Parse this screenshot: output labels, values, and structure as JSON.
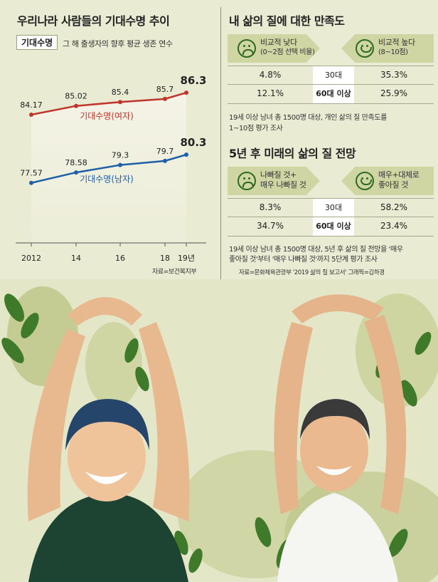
{
  "left_panel": {
    "title": "우리나라 사람들의 기대수명 추이",
    "tag": "기대수명",
    "subtitle": "그 해 출생자의 향후 평균 생존 연수",
    "source": "자료=보건복지부"
  },
  "chart_data": {
    "type": "line",
    "x": [
      "2012",
      "14",
      "16",
      "18",
      "19년"
    ],
    "series": [
      {
        "name": "기대수명(여자)",
        "values": [
          84.17,
          85.02,
          85.4,
          85.7,
          86.3
        ],
        "color": "#c0352b"
      },
      {
        "name": "기대수명(남자)",
        "values": [
          77.57,
          78.58,
          79.3,
          79.7,
          80.3
        ],
        "color": "#1f5fa8"
      }
    ],
    "value_labels": [
      [
        "84.17",
        "85.02",
        "85.4",
        "85.7",
        "86.3"
      ],
      [
        "77.57",
        "78.58",
        "79.3",
        "79.7",
        "80.3"
      ]
    ],
    "xlabel": "",
    "ylabel": "",
    "grid": false
  },
  "satisfaction": {
    "title": "내 삶의 질에 대한 만족도",
    "low_label_1": "비교적 낮다",
    "low_label_2": "(0~2점 선택 비율)",
    "high_label_1": "비교적 높다",
    "high_label_2": "(8~10점)",
    "rows": [
      {
        "group": "30대",
        "low": "4.8%",
        "high": "35.3%"
      },
      {
        "group": "60대 이상",
        "low": "12.1%",
        "high": "25.9%"
      }
    ],
    "note_1": "19세 이상 남녀 총 1500명 대상, 개인 삶의 질 만족도를",
    "note_2": "1~10점 평가 조사"
  },
  "outlook": {
    "title": "5년 후 미래의 삶의 질 전망",
    "low_label_1": "나빠질 것+",
    "low_label_2": "매우 나빠질 것",
    "high_label_1": "매우+대체로",
    "high_label_2": "좋아질 것",
    "rows": [
      {
        "group": "30대",
        "low": "8.3%",
        "high": "58.2%"
      },
      {
        "group": "60대 이상",
        "low": "34.7%",
        "high": "23.4%"
      }
    ],
    "note_1": "19세 이상 남녀 총 1500명 대상, 5년 후 삶의 질 전망을 '매우",
    "note_2": "좋아질 것'부터 '매우 나빠질 것'까지 5단계 평가 조사",
    "source": "자료=문화체육관광부 '2019 삶의 질 보고서'   그래픽=김하경"
  }
}
